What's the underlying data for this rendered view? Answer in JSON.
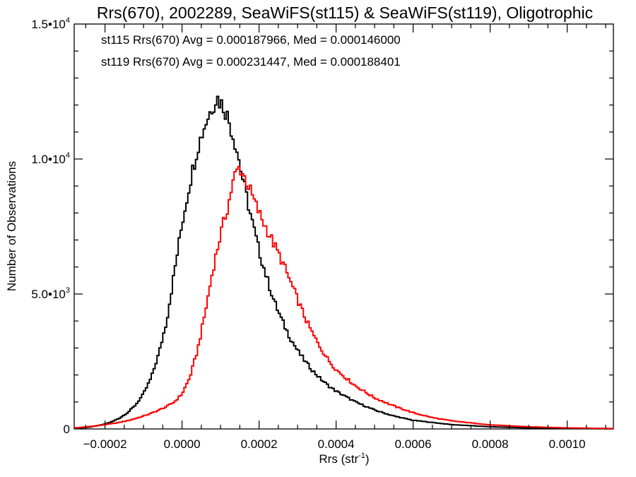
{
  "chart_data": {
    "type": "histogram-step",
    "title": "Rrs(670), 2002289, SeaWiFS(st115) & SeaWiFS(st119), Oligotrophic",
    "xlabel": {
      "base": "Rrs (str",
      "sup": "-1",
      "close": ")"
    },
    "ylabel": "Number of Observations",
    "xlim": [
      -0.00028,
      0.00112
    ],
    "ylim": [
      0,
      15000
    ],
    "x_ticks": [
      {
        "value": -0.0002,
        "label": "-0.0002"
      },
      {
        "value": 0.0,
        "label": "0.0000"
      },
      {
        "value": 0.0002,
        "label": "0.0002"
      },
      {
        "value": 0.0004,
        "label": "0.0004"
      },
      {
        "value": 0.0006,
        "label": "0.0006"
      },
      {
        "value": 0.0008,
        "label": "0.0008"
      },
      {
        "value": 0.001,
        "label": "0.0010"
      }
    ],
    "y_ticks": [
      {
        "value": 0,
        "base": "0",
        "sup": ""
      },
      {
        "value": 5000,
        "base": "5.0•10",
        "sup": "3"
      },
      {
        "value": 10000,
        "base": "1.0•10",
        "sup": "4"
      },
      {
        "value": 15000,
        "base": "1.5•10",
        "sup": "4"
      }
    ],
    "annotations": [
      {
        "text": "st115 Rrs(670) Avg = 0.000187966, Med = 0.000146000",
        "color": "#000000"
      },
      {
        "text": "st119 Rrs(670) Avg = 0.000231447, Med = 0.000188401",
        "color": "#ff0000"
      }
    ],
    "series": [
      {
        "name": "st115",
        "color": "#000000",
        "x": [
          -0.00028,
          -0.00026,
          -0.00024,
          -0.00022,
          -0.0002,
          -0.00018,
          -0.00016,
          -0.00014,
          -0.00012,
          -0.0001,
          -8e-05,
          -6e-05,
          -4e-05,
          -2e-05,
          0.0,
          2e-05,
          4e-05,
          6e-05,
          8e-05,
          9e-05,
          0.0001,
          0.00011,
          0.00012,
          0.00013,
          0.00014,
          0.00015,
          0.00016,
          0.00018,
          0.0002,
          0.00022,
          0.00024,
          0.00026,
          0.00028,
          0.0003,
          0.00032,
          0.00034,
          0.00036,
          0.00038,
          0.0004,
          0.00045,
          0.0005,
          0.00055,
          0.0006,
          0.0007,
          0.0008,
          0.0009,
          0.001,
          0.00112
        ],
        "y": [
          20,
          40,
          70,
          120,
          180,
          280,
          420,
          620,
          900,
          1300,
          1900,
          2800,
          4000,
          5800,
          7600,
          9100,
          10400,
          11300,
          12000,
          12300,
          12100,
          11900,
          11500,
          11000,
          10500,
          9800,
          9100,
          7800,
          6600,
          5600,
          4700,
          4000,
          3400,
          2900,
          2500,
          2150,
          1850,
          1600,
          1400,
          1000,
          700,
          480,
          320,
          160,
          80,
          40,
          20,
          5
        ]
      },
      {
        "name": "st119",
        "color": "#ff0000",
        "x": [
          -0.00028,
          -0.00026,
          -0.00024,
          -0.00022,
          -0.0002,
          -0.00018,
          -0.00016,
          -0.00014,
          -0.00012,
          -0.0001,
          -8e-05,
          -6e-05,
          -4e-05,
          -2e-05,
          0.0,
          2e-05,
          4e-05,
          6e-05,
          8e-05,
          0.0001,
          0.00012,
          0.00013,
          0.00014,
          0.00015,
          0.00016,
          0.00017,
          0.00018,
          0.0002,
          0.00022,
          0.00024,
          0.00026,
          0.00028,
          0.0003,
          0.00032,
          0.00034,
          0.00036,
          0.00038,
          0.0004,
          0.00045,
          0.0005,
          0.00055,
          0.0006,
          0.00065,
          0.0007,
          0.0008,
          0.0009,
          0.001,
          0.00112
        ],
        "y": [
          40,
          60,
          90,
          120,
          160,
          200,
          250,
          310,
          390,
          480,
          580,
          700,
          830,
          1000,
          1300,
          1900,
          2900,
          4300,
          5900,
          7200,
          8300,
          9000,
          9500,
          9700,
          9400,
          9100,
          8700,
          8000,
          7400,
          6800,
          6200,
          5500,
          4800,
          4100,
          3500,
          3000,
          2550,
          2200,
          1600,
          1150,
          850,
          600,
          420,
          300,
          150,
          80,
          40,
          15
        ]
      }
    ]
  }
}
